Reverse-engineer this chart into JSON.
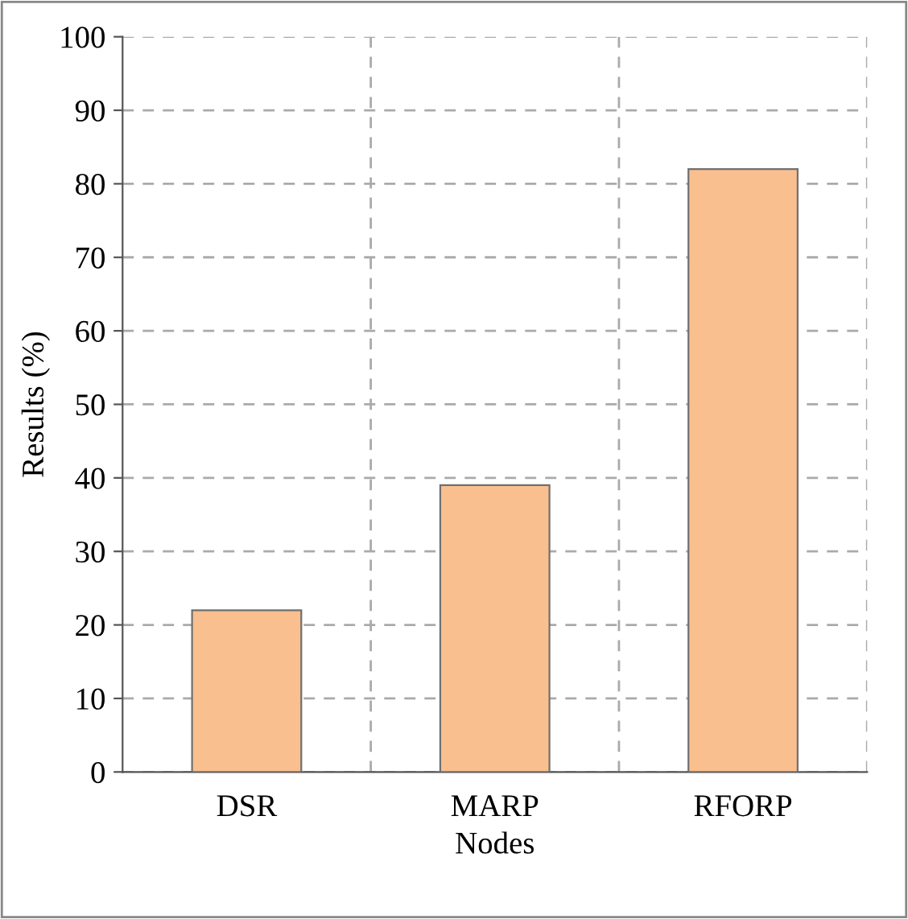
{
  "chart_data": {
    "type": "bar",
    "xlabel": "Nodes",
    "ylabel": "Results (%)",
    "categories": [
      "DSR",
      "MARP",
      "RFORP"
    ],
    "values": [
      22,
      39,
      82
    ],
    "color": "#f9bf8f",
    "ylim": [
      0,
      100
    ],
    "yticks": [
      0,
      10,
      20,
      30,
      40,
      50,
      60,
      70,
      80,
      90,
      100
    ],
    "grid": true
  }
}
